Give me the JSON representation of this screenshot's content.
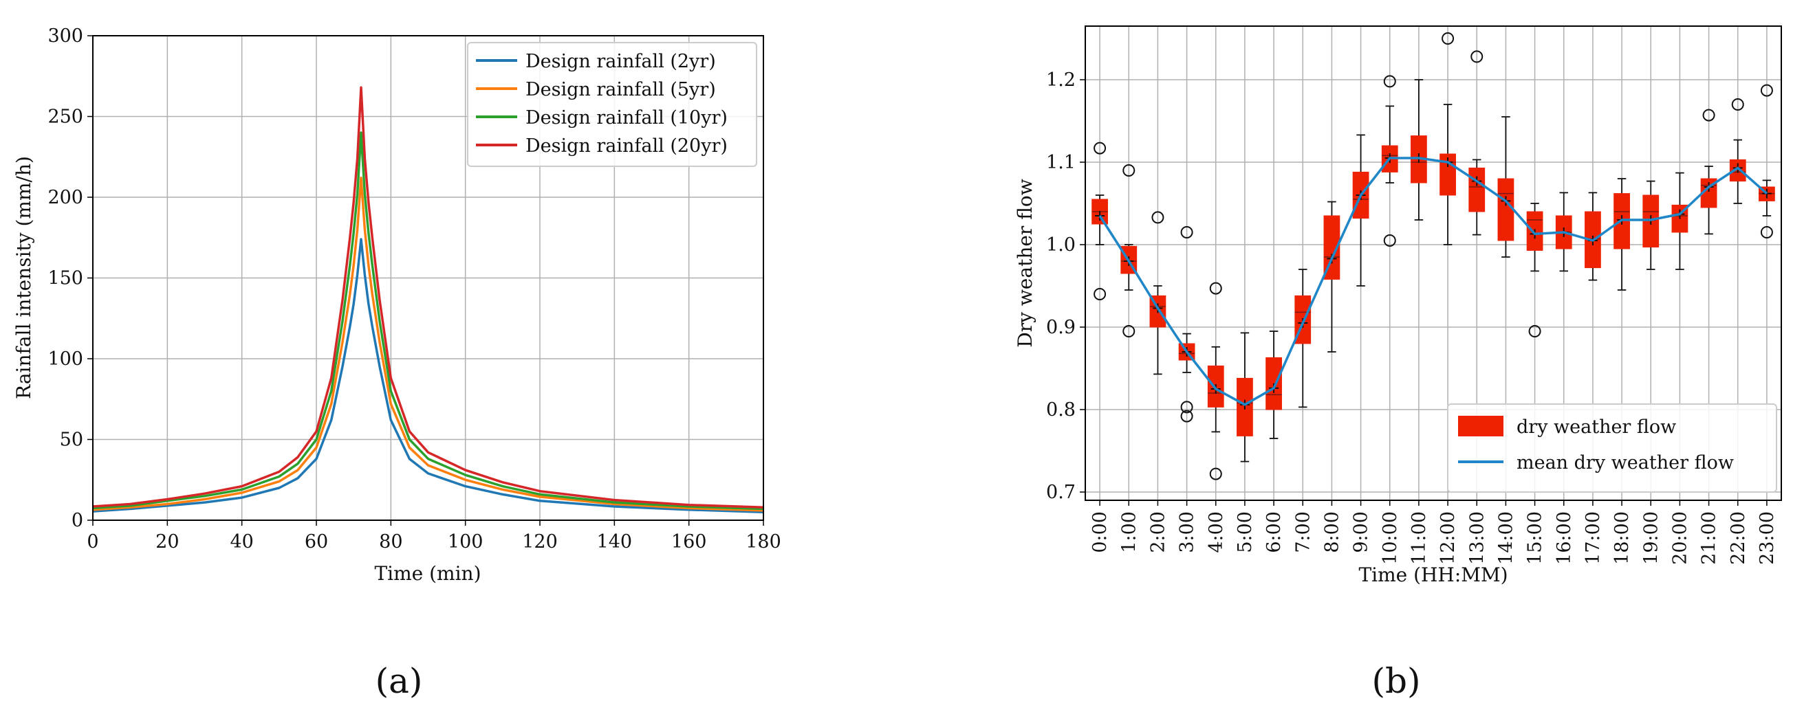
{
  "panels": {
    "a": "(a)",
    "b": "(b)"
  },
  "colors": {
    "blue": "#1f77b4",
    "orange": "#ff7f0e",
    "green": "#2ca02c",
    "red": "#d62728",
    "box_fill": "#ee2200",
    "mean_line": "#1f86c8",
    "grid": "#b0b0b0"
  },
  "chart_data": [
    {
      "type": "line",
      "title": "",
      "xlabel": "Time (min)",
      "ylabel": "Rainfall intensity (mm/h)",
      "xlim": [
        0,
        180
      ],
      "ylim": [
        0,
        300
      ],
      "xticks": [
        0,
        20,
        40,
        60,
        80,
        100,
        120,
        140,
        160,
        180
      ],
      "yticks": [
        0,
        50,
        100,
        150,
        200,
        250,
        300
      ],
      "grid": true,
      "legend_position": "top-right",
      "peak_time": 72,
      "x": [
        0,
        10,
        20,
        30,
        40,
        50,
        55,
        60,
        64,
        67,
        69,
        70,
        71,
        72,
        73,
        74,
        75,
        77,
        80,
        85,
        90,
        100,
        110,
        120,
        140,
        160,
        180
      ],
      "series": [
        {
          "name": "Design rainfall (2yr)",
          "color": "blue",
          "values": [
            5.5,
            7,
            9,
            11,
            14,
            20,
            26,
            38,
            62,
            95,
            120,
            134,
            152,
            174,
            152,
            134,
            120,
            95,
            62,
            38,
            29,
            21,
            16,
            12,
            8.5,
            6.5,
            5
          ]
        },
        {
          "name": "Design rainfall (5yr)",
          "color": "orange",
          "values": [
            6.5,
            8,
            10,
            13,
            17,
            24,
            31,
            45,
            72,
            110,
            140,
            158,
            180,
            212,
            180,
            158,
            140,
            110,
            72,
            45,
            34,
            25,
            19,
            14.5,
            10,
            7.5,
            6
          ]
        },
        {
          "name": "Design rainfall (10yr)",
          "color": "green",
          "values": [
            7.5,
            9,
            12,
            15,
            19,
            27,
            35,
            50,
            80,
            123,
            158,
            178,
            202,
            240,
            202,
            178,
            158,
            123,
            80,
            50,
            38,
            28,
            21,
            16,
            11,
            8.5,
            7
          ]
        },
        {
          "name": "Design rainfall (20yr)",
          "color": "red",
          "values": [
            8.5,
            10,
            13,
            16.5,
            21,
            30,
            39,
            55,
            88,
            136,
            175,
            197,
            224,
            268,
            224,
            197,
            175,
            136,
            88,
            55,
            42,
            31,
            23.5,
            18,
            12.5,
            9.5,
            8
          ]
        }
      ]
    },
    {
      "type": "box",
      "title": "",
      "xlabel": "Time (HH:MM)",
      "ylabel": "Dry weather flow",
      "ylim": [
        0.69,
        1.265
      ],
      "yticks": [
        0.7,
        0.8,
        0.9,
        1.0,
        1.1,
        1.2
      ],
      "ytick_labels": [
        "0.7",
        "0.8",
        "0.9",
        "1.0",
        "1.1",
        "1.2"
      ],
      "grid": true,
      "legend_position": "bottom-right",
      "legend": [
        "dry weather flow",
        "mean dry weather flow"
      ],
      "categories": [
        "0:00",
        "1:00",
        "2:00",
        "3:00",
        "4:00",
        "5:00",
        "6:00",
        "7:00",
        "8:00",
        "9:00",
        "10:00",
        "11:00",
        "12:00",
        "13:00",
        "14:00",
        "15:00",
        "16:00",
        "17:00",
        "18:00",
        "19:00",
        "20:00",
        "21:00",
        "22:00",
        "23:00"
      ],
      "boxes": [
        {
          "q1": 1.025,
          "median": 1.04,
          "q3": 1.055,
          "wl": 1.0,
          "wh": 1.06,
          "mean": 1.035,
          "fliers": [
            1.117,
            0.94
          ]
        },
        {
          "q1": 0.965,
          "median": 0.98,
          "q3": 0.998,
          "wl": 0.945,
          "wh": 1.0,
          "mean": 0.98,
          "fliers": [
            1.09,
            0.895
          ]
        },
        {
          "q1": 0.9,
          "median": 0.925,
          "q3": 0.938,
          "wl": 0.843,
          "wh": 0.95,
          "mean": 0.923,
          "fliers": [
            1.033
          ]
        },
        {
          "q1": 0.86,
          "median": 0.868,
          "q3": 0.88,
          "wl": 0.845,
          "wh": 0.892,
          "mean": 0.87,
          "fliers": [
            1.015,
            0.803,
            0.792
          ]
        },
        {
          "q1": 0.803,
          "median": 0.82,
          "q3": 0.853,
          "wl": 0.773,
          "wh": 0.876,
          "mean": 0.825,
          "fliers": [
            0.947,
            0.722
          ]
        },
        {
          "q1": 0.768,
          "median": 0.808,
          "q3": 0.838,
          "wl": 0.737,
          "wh": 0.893,
          "mean": 0.806,
          "fliers": []
        },
        {
          "q1": 0.8,
          "median": 0.818,
          "q3": 0.863,
          "wl": 0.765,
          "wh": 0.895,
          "mean": 0.826,
          "fliers": []
        },
        {
          "q1": 0.88,
          "median": 0.918,
          "q3": 0.938,
          "wl": 0.803,
          "wh": 0.97,
          "mean": 0.905,
          "fliers": []
        },
        {
          "q1": 0.958,
          "median": 0.985,
          "q3": 1.035,
          "wl": 0.87,
          "wh": 1.052,
          "mean": 0.983,
          "fliers": []
        },
        {
          "q1": 1.032,
          "median": 1.055,
          "q3": 1.088,
          "wl": 0.95,
          "wh": 1.133,
          "mean": 1.06,
          "fliers": []
        },
        {
          "q1": 1.088,
          "median": 1.108,
          "q3": 1.12,
          "wl": 1.075,
          "wh": 1.168,
          "mean": 1.105,
          "fliers": [
            1.198,
            1.005
          ]
        },
        {
          "q1": 1.075,
          "median": 1.1,
          "q3": 1.132,
          "wl": 1.03,
          "wh": 1.2,
          "mean": 1.105,
          "fliers": []
        },
        {
          "q1": 1.06,
          "median": 1.1,
          "q3": 1.11,
          "wl": 1.0,
          "wh": 1.17,
          "mean": 1.1,
          "fliers": [
            1.25
          ]
        },
        {
          "q1": 1.04,
          "median": 1.07,
          "q3": 1.093,
          "wl": 1.012,
          "wh": 1.103,
          "mean": 1.077,
          "fliers": [
            1.228
          ]
        },
        {
          "q1": 1.005,
          "median": 1.062,
          "q3": 1.08,
          "wl": 0.985,
          "wh": 1.155,
          "mean": 1.053,
          "fliers": []
        },
        {
          "q1": 0.993,
          "median": 1.03,
          "q3": 1.04,
          "wl": 0.968,
          "wh": 1.05,
          "mean": 1.013,
          "fliers": [
            0.895
          ]
        },
        {
          "q1": 0.995,
          "median": 1.015,
          "q3": 1.035,
          "wl": 0.968,
          "wh": 1.063,
          "mean": 1.015,
          "fliers": []
        },
        {
          "q1": 0.972,
          "median": 1.007,
          "q3": 1.04,
          "wl": 0.957,
          "wh": 1.063,
          "mean": 1.005,
          "fliers": []
        },
        {
          "q1": 0.995,
          "median": 1.04,
          "q3": 1.062,
          "wl": 0.945,
          "wh": 1.08,
          "mean": 1.03,
          "fliers": []
        },
        {
          "q1": 0.997,
          "median": 1.04,
          "q3": 1.06,
          "wl": 0.97,
          "wh": 1.077,
          "mean": 1.03,
          "fliers": []
        },
        {
          "q1": 1.015,
          "median": 1.035,
          "q3": 1.048,
          "wl": 0.97,
          "wh": 1.087,
          "mean": 1.037,
          "fliers": []
        },
        {
          "q1": 1.045,
          "median": 1.072,
          "q3": 1.08,
          "wl": 1.013,
          "wh": 1.095,
          "mean": 1.07,
          "fliers": [
            1.157
          ]
        },
        {
          "q1": 1.077,
          "median": 1.088,
          "q3": 1.103,
          "wl": 1.05,
          "wh": 1.127,
          "mean": 1.093,
          "fliers": [
            1.17
          ]
        },
        {
          "q1": 1.053,
          "median": 1.062,
          "q3": 1.07,
          "wl": 1.035,
          "wh": 1.078,
          "mean": 1.062,
          "fliers": [
            1.187,
            1.015
          ]
        }
      ]
    }
  ]
}
